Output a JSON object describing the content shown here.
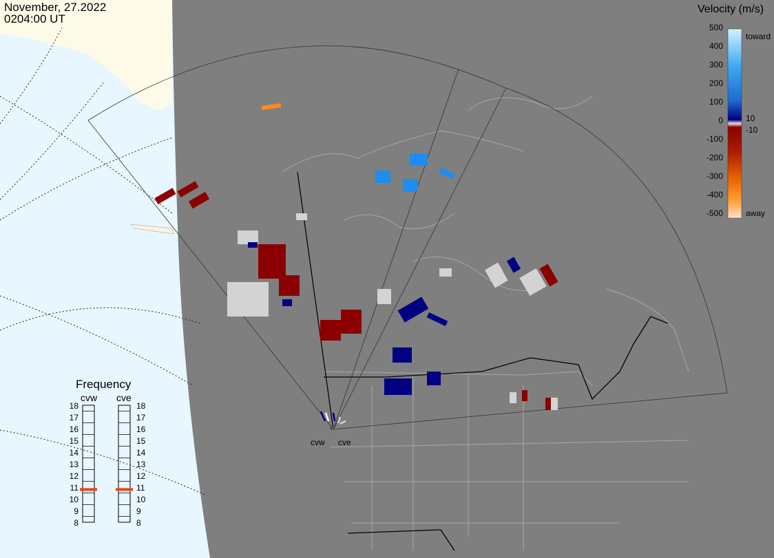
{
  "header": {
    "date": "November, 27.2022",
    "time": "0204:00 UT"
  },
  "velocity_scale": {
    "title": "Velocity (m/s)",
    "ticks": [
      "500",
      "400",
      "300",
      "200",
      "100",
      "0",
      "-100",
      "-200",
      "-300",
      "-400",
      "-500"
    ],
    "small_labels": [
      "10",
      "-10"
    ],
    "end_labels": {
      "top": "toward",
      "bottom": "away"
    },
    "colors": {
      "toward_light": "#c8ecff",
      "toward_mid": "#2a8ce6",
      "toward_dark": "#000080",
      "away_dark": "#8b0000",
      "away_mid": "#e86a00",
      "away_light": "#ffe0c8",
      "ground_scatter": "#d3d3d3"
    }
  },
  "frequency_panel": {
    "title": "Frequency",
    "radars": [
      "cvw",
      "cve"
    ],
    "levels": [
      "18",
      "17",
      "16",
      "15",
      "14",
      "13",
      "12",
      "11",
      "10",
      "9",
      "8"
    ],
    "markers": [
      {
        "radar": "cvw",
        "value": 10.8
      },
      {
        "radar": "cve",
        "value": 10.8
      }
    ],
    "marker_color": "#e8461a"
  },
  "sites": [
    "cvw",
    "cve"
  ],
  "map_colors": {
    "ocean": "#e8f6ff",
    "land_outside": "#fdfbe8",
    "night_side": "#7f7f7f",
    "borders": "#9a9a9a"
  }
}
